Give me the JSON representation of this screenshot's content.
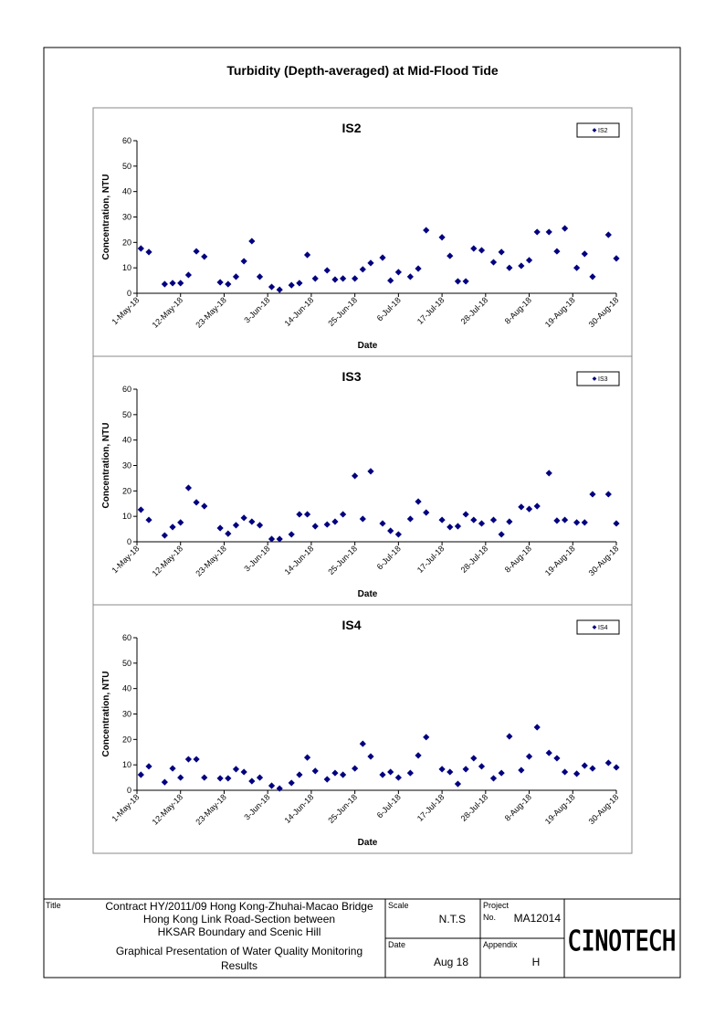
{
  "document": {
    "title": "Turbidity (Depth-averaged) at Mid-Flood Tide"
  },
  "chart_data": [
    {
      "type": "scatter",
      "title": "IS2",
      "x_label": "Date",
      "y_label": "Concentration, NTU",
      "x": [
        "2018-05-02",
        "2018-05-04",
        "2018-05-08",
        "2018-05-10",
        "2018-05-12",
        "2018-05-14",
        "2018-05-16",
        "2018-05-18",
        "2018-05-22",
        "2018-05-24",
        "2018-05-26",
        "2018-05-28",
        "2018-05-30",
        "2018-06-01",
        "2018-06-04",
        "2018-06-06",
        "2018-06-09",
        "2018-06-11",
        "2018-06-13",
        "2018-06-15",
        "2018-06-18",
        "2018-06-20",
        "2018-06-22",
        "2018-06-25",
        "2018-06-27",
        "2018-06-29",
        "2018-07-02",
        "2018-07-04",
        "2018-07-06",
        "2018-07-09",
        "2018-07-11",
        "2018-07-13",
        "2018-07-17",
        "2018-07-19",
        "2018-07-21",
        "2018-07-23",
        "2018-07-25",
        "2018-07-27",
        "2018-07-30",
        "2018-08-01",
        "2018-08-03",
        "2018-08-06",
        "2018-08-08",
        "2018-08-10",
        "2018-08-13",
        "2018-08-15",
        "2018-08-17",
        "2018-08-20",
        "2018-08-22",
        "2018-08-24",
        "2018-08-28",
        "2018-08-30"
      ],
      "series": [
        {
          "name": "IS2",
          "color": "#000080",
          "values": [
            17.6,
            16.2,
            3.6,
            4,
            4,
            7.2,
            16.5,
            14.4,
            4.3,
            3.6,
            6.5,
            12.6,
            20.5,
            6.5,
            2.5,
            1.4,
            3.2,
            4,
            15.1,
            5.8,
            9,
            5.4,
            5.8,
            5.8,
            9.4,
            11.9,
            14,
            5,
            8.3,
            6.5,
            9.7,
            24.8,
            22,
            14.7,
            4.7,
            4.7,
            17.6,
            16.9,
            12.2,
            16.2,
            10,
            10.8,
            13,
            24.1,
            24.1,
            16.5,
            25.5,
            10,
            15.5,
            6.5,
            23,
            13.7
          ]
        }
      ],
      "xlim": [
        "2018-05-01",
        "2018-08-30"
      ],
      "xticks": [
        {
          "value": "2018-05-01",
          "label": "1-May-18"
        },
        {
          "value": "2018-05-12",
          "label": "12-May-18"
        },
        {
          "value": "2018-05-23",
          "label": "23-May-18"
        },
        {
          "value": "2018-06-03",
          "label": "3-Jun-18"
        },
        {
          "value": "2018-06-14",
          "label": "14-Jun-18"
        },
        {
          "value": "2018-06-25",
          "label": "25-Jun-18"
        },
        {
          "value": "2018-07-06",
          "label": "6-Jul-18"
        },
        {
          "value": "2018-07-17",
          "label": "17-Jul-18"
        },
        {
          "value": "2018-07-28",
          "label": "28-Jul-18"
        },
        {
          "value": "2018-08-08",
          "label": "8-Aug-18"
        },
        {
          "value": "2018-08-19",
          "label": "19-Aug-18"
        },
        {
          "value": "2018-08-30",
          "label": "30-Aug-18"
        }
      ],
      "ylim": [
        0,
        60
      ],
      "yticks": [
        0,
        10,
        20,
        30,
        40,
        50,
        60
      ],
      "legend": "upper right"
    },
    {
      "type": "scatter",
      "title": "IS3",
      "x_label": "Date",
      "y_label": "Concentration, NTU",
      "x": [
        "2018-05-02",
        "2018-05-04",
        "2018-05-08",
        "2018-05-10",
        "2018-05-12",
        "2018-05-14",
        "2018-05-16",
        "2018-05-18",
        "2018-05-22",
        "2018-05-24",
        "2018-05-26",
        "2018-05-28",
        "2018-05-30",
        "2018-06-01",
        "2018-06-04",
        "2018-06-06",
        "2018-06-09",
        "2018-06-11",
        "2018-06-13",
        "2018-06-15",
        "2018-06-18",
        "2018-06-20",
        "2018-06-22",
        "2018-06-25",
        "2018-06-27",
        "2018-06-29",
        "2018-07-02",
        "2018-07-04",
        "2018-07-06",
        "2018-07-09",
        "2018-07-11",
        "2018-07-13",
        "2018-07-17",
        "2018-07-19",
        "2018-07-21",
        "2018-07-23",
        "2018-07-25",
        "2018-07-27",
        "2018-07-30",
        "2018-08-01",
        "2018-08-03",
        "2018-08-06",
        "2018-08-08",
        "2018-08-10",
        "2018-08-13",
        "2018-08-15",
        "2018-08-17",
        "2018-08-20",
        "2018-08-22",
        "2018-08-24",
        "2018-08-28",
        "2018-08-30"
      ],
      "series": [
        {
          "name": "IS3",
          "color": "#000080",
          "values": [
            12.6,
            8.6,
            2.5,
            5.8,
            7.6,
            21.2,
            15.5,
            14,
            5.4,
            3.2,
            6.5,
            9.4,
            7.9,
            6.5,
            1.1,
            1.1,
            2.9,
            10.8,
            10.8,
            6.1,
            6.8,
            7.9,
            10.8,
            25.9,
            9,
            27.7,
            7.2,
            4.3,
            2.9,
            9,
            15.8,
            11.5,
            8.6,
            5.8,
            6.1,
            10.8,
            8.6,
            7.2,
            8.6,
            2.9,
            7.9,
            13.7,
            12.9,
            14,
            27,
            8.3,
            8.6,
            7.6,
            7.6,
            18.7,
            18.7,
            7.2
          ]
        }
      ],
      "xlim": [
        "2018-05-01",
        "2018-08-30"
      ],
      "xticks": [
        {
          "value": "2018-05-01",
          "label": "1-May-18"
        },
        {
          "value": "2018-05-12",
          "label": "12-May-18"
        },
        {
          "value": "2018-05-23",
          "label": "23-May-18"
        },
        {
          "value": "2018-06-03",
          "label": "3-Jun-18"
        },
        {
          "value": "2018-06-14",
          "label": "14-Jun-18"
        },
        {
          "value": "2018-06-25",
          "label": "25-Jun-18"
        },
        {
          "value": "2018-07-06",
          "label": "6-Jul-18"
        },
        {
          "value": "2018-07-17",
          "label": "17-Jul-18"
        },
        {
          "value": "2018-07-28",
          "label": "28-Jul-18"
        },
        {
          "value": "2018-08-08",
          "label": "8-Aug-18"
        },
        {
          "value": "2018-08-19",
          "label": "19-Aug-18"
        },
        {
          "value": "2018-08-30",
          "label": "30-Aug-18"
        }
      ],
      "ylim": [
        0,
        60
      ],
      "yticks": [
        0,
        10,
        20,
        30,
        40,
        50,
        60
      ],
      "legend": "upper right"
    },
    {
      "type": "scatter",
      "title": "IS4",
      "x_label": "Date",
      "y_label": "Concentration, NTU",
      "x": [
        "2018-05-02",
        "2018-05-04",
        "2018-05-08",
        "2018-05-10",
        "2018-05-12",
        "2018-05-14",
        "2018-05-16",
        "2018-05-18",
        "2018-05-22",
        "2018-05-24",
        "2018-05-26",
        "2018-05-28",
        "2018-05-30",
        "2018-06-01",
        "2018-06-04",
        "2018-06-06",
        "2018-06-09",
        "2018-06-11",
        "2018-06-13",
        "2018-06-15",
        "2018-06-18",
        "2018-06-20",
        "2018-06-22",
        "2018-06-25",
        "2018-06-27",
        "2018-06-29",
        "2018-07-02",
        "2018-07-04",
        "2018-07-06",
        "2018-07-09",
        "2018-07-11",
        "2018-07-13",
        "2018-07-17",
        "2018-07-19",
        "2018-07-21",
        "2018-07-23",
        "2018-07-25",
        "2018-07-27",
        "2018-07-30",
        "2018-08-01",
        "2018-08-03",
        "2018-08-06",
        "2018-08-08",
        "2018-08-10",
        "2018-08-13",
        "2018-08-15",
        "2018-08-17",
        "2018-08-20",
        "2018-08-22",
        "2018-08-24",
        "2018-08-28",
        "2018-08-30"
      ],
      "series": [
        {
          "name": "IS4",
          "color": "#000080",
          "values": [
            6.1,
            9.4,
            3.2,
            8.6,
            5,
            12.2,
            12.2,
            5,
            4.7,
            4.7,
            8.3,
            7.2,
            3.6,
            5,
            1.8,
            0.7,
            2.9,
            6.1,
            12.9,
            7.6,
            4.3,
            6.8,
            6.1,
            8.6,
            18.3,
            13.3,
            6.1,
            7.2,
            5,
            6.8,
            13.7,
            20.9,
            8.3,
            7.2,
            2.5,
            8.3,
            12.6,
            9.4,
            4.7,
            6.8,
            21.2,
            7.9,
            13.3,
            24.8,
            14.7,
            12.6,
            7.2,
            6.5,
            9.7,
            8.6,
            10.8,
            9
          ]
        }
      ],
      "xlim": [
        "2018-05-01",
        "2018-08-30"
      ],
      "xticks": [
        {
          "value": "2018-05-01",
          "label": "1-May-18"
        },
        {
          "value": "2018-05-12",
          "label": "12-May-18"
        },
        {
          "value": "2018-05-23",
          "label": "23-May-18"
        },
        {
          "value": "2018-06-03",
          "label": "3-Jun-18"
        },
        {
          "value": "2018-06-14",
          "label": "14-Jun-18"
        },
        {
          "value": "2018-06-25",
          "label": "25-Jun-18"
        },
        {
          "value": "2018-07-06",
          "label": "6-Jul-18"
        },
        {
          "value": "2018-07-17",
          "label": "17-Jul-18"
        },
        {
          "value": "2018-07-28",
          "label": "28-Jul-18"
        },
        {
          "value": "2018-08-08",
          "label": "8-Aug-18"
        },
        {
          "value": "2018-08-19",
          "label": "19-Aug-18"
        },
        {
          "value": "2018-08-30",
          "label": "30-Aug-18"
        }
      ],
      "ylim": [
        0,
        60
      ],
      "yticks": [
        0,
        10,
        20,
        30,
        40,
        50,
        60
      ],
      "legend": "upper right"
    }
  ],
  "title_block": {
    "title_label": "Title",
    "contract": [
      "Contract HY/2011/09 Hong Kong-Zhuhai-Macao Bridge",
      "Hong Kong Link Road-Section between",
      "HKSAR Boundary and Scenic Hill"
    ],
    "description": [
      "Graphical Presentation of Water Quality Monitoring",
      "Results"
    ],
    "scale_label": "Scale",
    "scale": "N.T.S",
    "project_label": "Project",
    "project_no_label": "No.",
    "project_no": "MA12014",
    "date_label": "Date",
    "date": "Aug 18",
    "appendix_label": "Appendix",
    "appendix": "H",
    "logo": "CINOTECH"
  }
}
